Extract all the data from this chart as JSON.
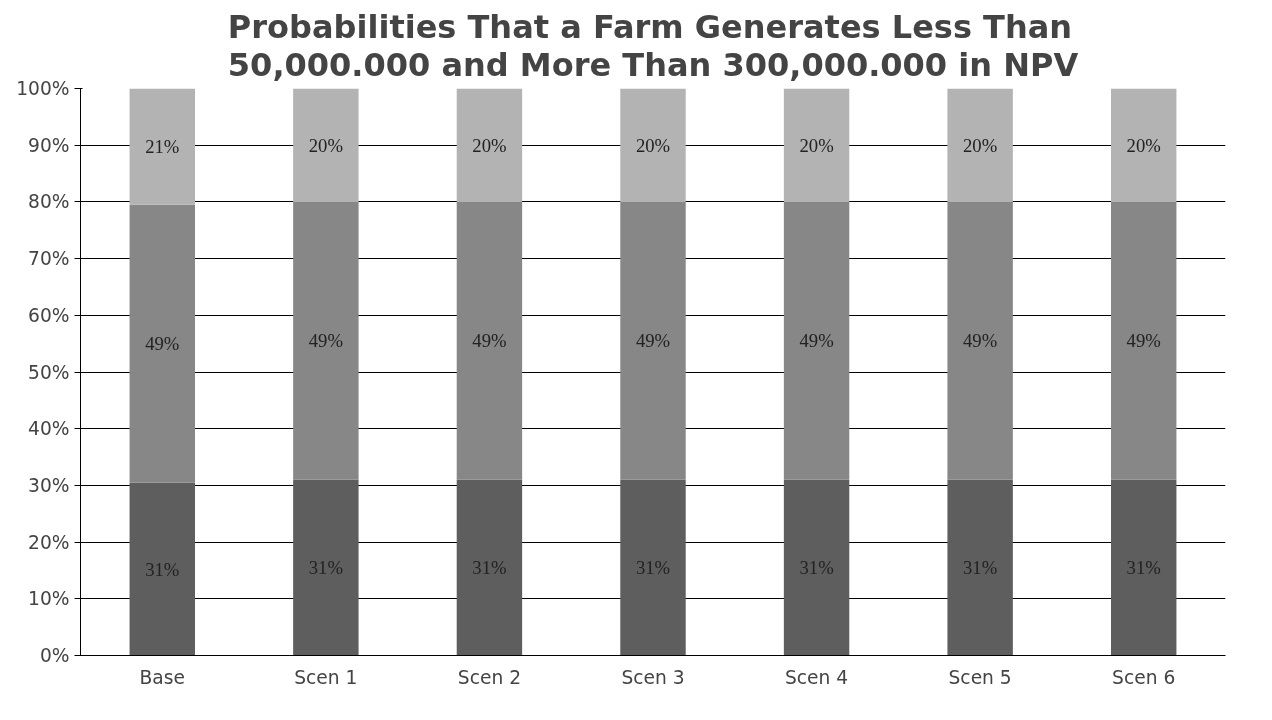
{
  "chart_data": {
    "type": "bar",
    "stacked": true,
    "title": "Probabilities That a Farm Generates Less Than\n50,000.000 and More Than 300,000.000 in NPV",
    "categories": [
      "Base",
      "Scen 1",
      "Scen 2",
      "Scen 3",
      "Scen 4",
      "Scen 5",
      "Scen 6"
    ],
    "series": [
      {
        "color": "#5e5e5e",
        "values": [
          30.5,
          31,
          31,
          31,
          31,
          31,
          31
        ],
        "value_labels": [
          "31%",
          "31%",
          "31%",
          "31%",
          "31%",
          "31%",
          "31%"
        ]
      },
      {
        "color": "#878787",
        "values": [
          49,
          49,
          49,
          49,
          49,
          49,
          49
        ],
        "value_labels": [
          "49%",
          "49%",
          "49%",
          "49%",
          "49%",
          "49%",
          "49%"
        ]
      },
      {
        "color": "#b3b3b3",
        "values": [
          20.5,
          20,
          20,
          20,
          20,
          20,
          20
        ],
        "value_labels": [
          "21%",
          "20%",
          "20%",
          "20%",
          "20%",
          "20%",
          "20%"
        ]
      }
    ],
    "ylim": [
      0,
      100
    ],
    "yticks": [
      {
        "value": 0,
        "label": "0%"
      },
      {
        "value": 10,
        "label": "10%"
      },
      {
        "value": 20,
        "label": "20%"
      },
      {
        "value": 30,
        "label": "30%"
      },
      {
        "value": 40,
        "label": "40%"
      },
      {
        "value": 50,
        "label": "50%"
      },
      {
        "value": 60,
        "label": "60%"
      },
      {
        "value": 70,
        "label": "70%"
      },
      {
        "value": 80,
        "label": "80%"
      },
      {
        "value": 90,
        "label": "90%"
      },
      {
        "value": 100,
        "label": "100%"
      }
    ],
    "grid": "y"
  }
}
